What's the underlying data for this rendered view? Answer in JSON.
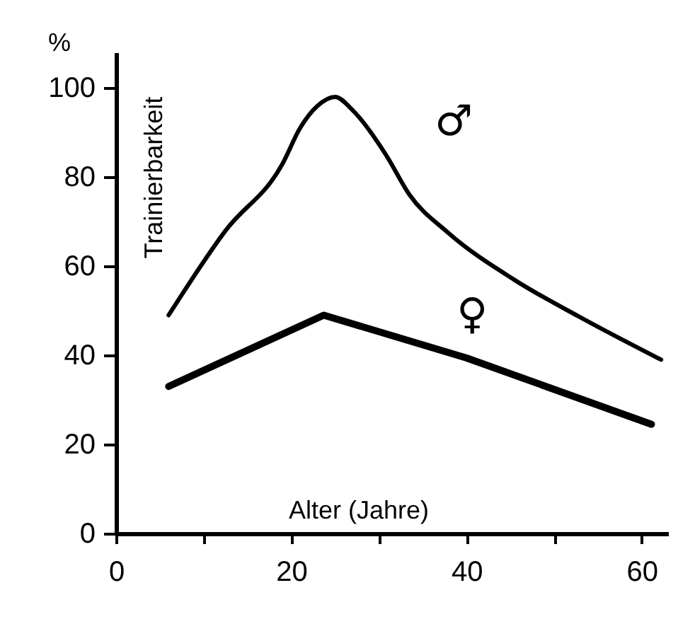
{
  "chart_data": {
    "type": "line",
    "xlabel": "Alter (Jahre)",
    "ylabel": "Trainierbarkeit",
    "annotations": [
      "%"
    ],
    "series": [
      {
        "name": "♂",
        "color": "#000000",
        "x": [
          6,
          12.5,
          19,
          21,
          23,
          25,
          27,
          30.8,
          33.5,
          37.9,
          45.4,
          53,
          62.2
        ],
        "values": [
          49,
          68,
          83,
          91,
          96,
          98,
          95,
          85,
          76,
          67.5,
          57,
          48.5,
          39
        ]
      },
      {
        "name": "♀",
        "color": "#000000",
        "x": [
          6,
          23.7,
          40,
          61.1
        ],
        "values": [
          33,
          49,
          39.4,
          24.5
        ]
      }
    ],
    "xlim": [
      0,
      63
    ],
    "ylim": [
      0,
      108
    ],
    "xticks": [
      0,
      {
        "value": 10,
        "label": null
      },
      20,
      {
        "value": 30,
        "label": null
      },
      40,
      {
        "value": 50,
        "label": null
      },
      60
    ],
    "yticks": [
      0,
      20,
      40,
      60,
      80,
      100
    ],
    "grid": false,
    "marker": "none",
    "line_style": "solid"
  }
}
